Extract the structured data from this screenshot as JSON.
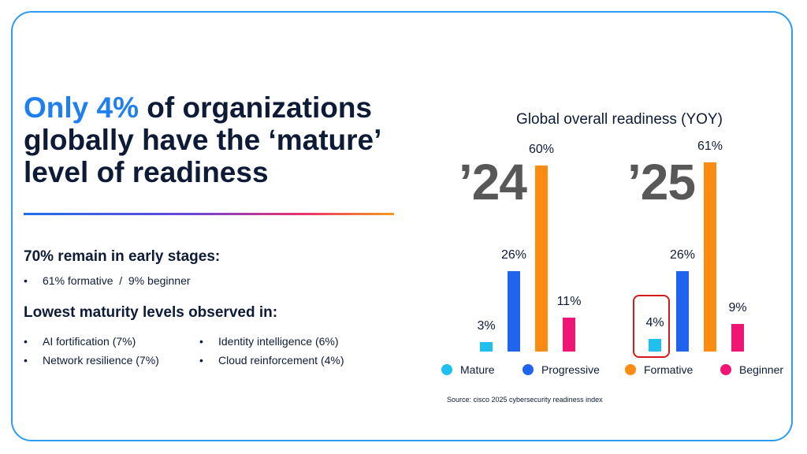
{
  "headline": {
    "accent": "Only 4%",
    "rest": " of organizations globally have the ‘mature’ level of readiness"
  },
  "early_stages": {
    "title": "70% remain in early stages:",
    "bullet": "61% formative  /  9% beginner"
  },
  "lowest": {
    "title": "Lowest maturity levels observed in:",
    "items": [
      "AI fortification (7%)",
      "Network resilience (7%)",
      "Identity intelligence (6%)",
      "Cloud reinforcement (4%)"
    ]
  },
  "chart_data": {
    "type": "bar",
    "title": "Global overall readiness (YOY)",
    "groups": [
      "’24",
      "’25"
    ],
    "series": [
      {
        "name": "Mature",
        "color": "#1fc0f0",
        "values": [
          3,
          4
        ],
        "labels": [
          "3%",
          "4%"
        ]
      },
      {
        "name": "Progressive",
        "color": "#1f63ee",
        "values": [
          26,
          26
        ],
        "labels": [
          "26%",
          "26%"
        ]
      },
      {
        "name": "Formative",
        "color": "#fb8c11",
        "values": [
          60,
          61
        ],
        "labels": [
          "60%",
          "61%"
        ]
      },
      {
        "name": "Beginner",
        "color": "#ee1574",
        "values": [
          11,
          9
        ],
        "labels": [
          "11%",
          "9%"
        ]
      }
    ],
    "highlight": {
      "group": "’25",
      "series": "Mature"
    },
    "source": "Source:  cisco 2025 cybersecurity readiness index"
  }
}
